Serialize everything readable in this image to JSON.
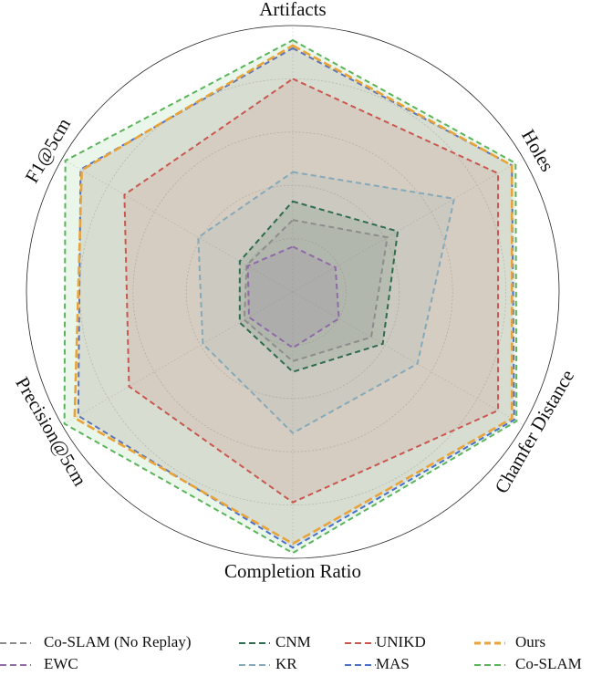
{
  "chart_data": {
    "type": "radar",
    "categories": [
      "Artifacts",
      "Holes",
      "Chamfer Distance",
      "Completion Ratio",
      "Precision@5cm",
      "F1@5cm"
    ],
    "rlim": [
      0,
      1
    ],
    "rticks": [
      0.2,
      0.4,
      0.6,
      0.8
    ],
    "grid": true,
    "legend": "bottom",
    "series": [
      {
        "name": "Co-SLAM",
        "color": "#5bb35a",
        "values": [
          0.945,
          0.966,
          0.97,
          0.98,
          0.99,
          0.986
        ]
      },
      {
        "name": "MAS",
        "color": "#4a6fc9",
        "values": [
          0.915,
          0.95,
          0.96,
          0.96,
          0.93,
          0.92
        ]
      },
      {
        "name": "Ours",
        "color": "#e8a33a",
        "values": [
          0.925,
          0.95,
          0.95,
          0.945,
          0.946,
          0.915
        ]
      },
      {
        "name": "UNIKD",
        "color": "#c9574f",
        "values": [
          0.8,
          0.89,
          0.89,
          0.79,
          0.71,
          0.73
        ]
      },
      {
        "name": "KR",
        "color": "#86a9ba",
        "values": [
          0.45,
          0.7,
          0.54,
          0.53,
          0.39,
          0.41
        ]
      },
      {
        "name": "CNM",
        "color": "#2e6b4f",
        "values": [
          0.34,
          0.455,
          0.39,
          0.3,
          0.23,
          0.23
        ]
      },
      {
        "name": "Co-SLAM (No Replay)",
        "color": "#8c8c8c",
        "values": [
          0.27,
          0.41,
          0.34,
          0.26,
          0.21,
          0.2
        ]
      },
      {
        "name": "EWC",
        "color": "#8e6aa8",
        "values": [
          0.17,
          0.185,
          0.2,
          0.21,
          0.19,
          0.195
        ]
      }
    ]
  }
}
